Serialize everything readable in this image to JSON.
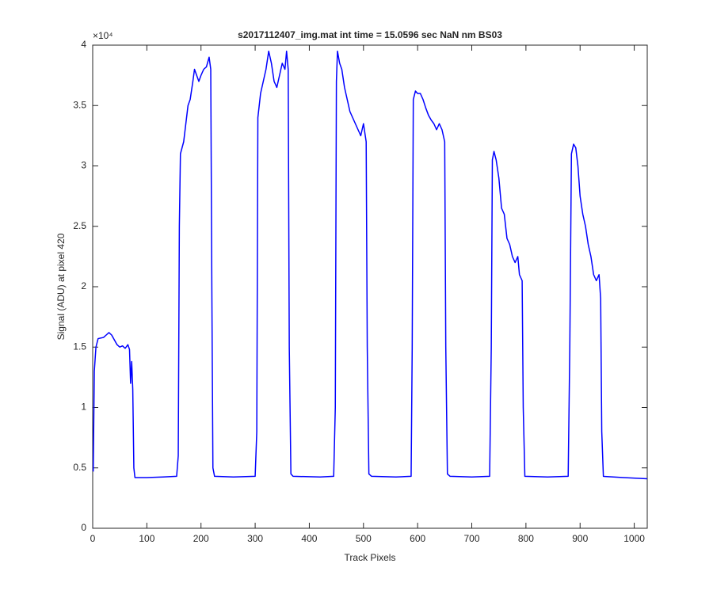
{
  "chart_data": {
    "type": "line",
    "title": "s2017112407_img.mat int time = 15.0596 sec  NaN nm BS03",
    "x_label": "Track Pixels",
    "y_label": "Signal (ADU) at pixel 420",
    "y_exponent_label": "×10⁴",
    "color": "#0000ff",
    "xlim": [
      0,
      1024
    ],
    "xticks": [
      0,
      100,
      200,
      300,
      400,
      500,
      600,
      700,
      800,
      900,
      1000
    ],
    "ylim": [
      0,
      4
    ],
    "yticks": [
      0,
      0.5,
      1,
      1.5,
      2,
      2.5,
      3,
      3.5,
      4
    ],
    "grid": false,
    "x": [
      1,
      3,
      6,
      10,
      20,
      25,
      30,
      35,
      40,
      45,
      50,
      55,
      60,
      65,
      68,
      70,
      72,
      74,
      76,
      78,
      100,
      130,
      155,
      158,
      160,
      162,
      168,
      172,
      176,
      180,
      185,
      188,
      192,
      196,
      200,
      205,
      210,
      215,
      218,
      220,
      222,
      225,
      260,
      300,
      303,
      305,
      310,
      315,
      320,
      325,
      330,
      335,
      340,
      345,
      350,
      355,
      358,
      361,
      363,
      366,
      370,
      420,
      445,
      448,
      450,
      452,
      456,
      460,
      465,
      470,
      475,
      480,
      485,
      490,
      495,
      500,
      505,
      507,
      510,
      515,
      560,
      588,
      590,
      592,
      596,
      600,
      605,
      610,
      615,
      620,
      625,
      630,
      635,
      640,
      645,
      650,
      652,
      655,
      660,
      700,
      733,
      736,
      738,
      741,
      745,
      750,
      755,
      760,
      765,
      770,
      775,
      780,
      785,
      788,
      793,
      795,
      798,
      840,
      878,
      881,
      884,
      888,
      892,
      896,
      900,
      905,
      910,
      915,
      920,
      925,
      930,
      935,
      938,
      940,
      943,
      980,
      1024
    ],
    "values": [
      0.47,
      1.3,
      1.5,
      1.57,
      1.58,
      1.6,
      1.62,
      1.6,
      1.56,
      1.52,
      1.5,
      1.51,
      1.49,
      1.52,
      1.48,
      1.2,
      1.38,
      1.15,
      0.5,
      0.42,
      0.42,
      0.425,
      0.43,
      0.6,
      2.5,
      3.1,
      3.2,
      3.35,
      3.5,
      3.55,
      3.7,
      3.8,
      3.75,
      3.7,
      3.75,
      3.8,
      3.82,
      3.9,
      3.8,
      2.0,
      0.5,
      0.43,
      0.425,
      0.43,
      0.8,
      3.4,
      3.6,
      3.7,
      3.8,
      3.95,
      3.85,
      3.7,
      3.65,
      3.75,
      3.85,
      3.8,
      3.95,
      3.8,
      1.5,
      0.45,
      0.43,
      0.425,
      0.43,
      1.0,
      3.7,
      3.95,
      3.85,
      3.8,
      3.65,
      3.55,
      3.45,
      3.4,
      3.35,
      3.3,
      3.25,
      3.35,
      3.2,
      1.5,
      0.45,
      0.43,
      0.425,
      0.43,
      1.5,
      3.55,
      3.62,
      3.6,
      3.6,
      3.55,
      3.48,
      3.42,
      3.38,
      3.35,
      3.3,
      3.35,
      3.3,
      3.2,
      1.5,
      0.45,
      0.43,
      0.425,
      0.43,
      1.5,
      3.05,
      3.12,
      3.05,
      2.9,
      2.65,
      2.6,
      2.4,
      2.35,
      2.25,
      2.2,
      2.25,
      2.1,
      2.05,
      1.0,
      0.43,
      0.425,
      0.43,
      1.5,
      3.1,
      3.18,
      3.15,
      3.0,
      2.75,
      2.6,
      2.5,
      2.35,
      2.25,
      2.1,
      2.05,
      2.1,
      1.9,
      0.8,
      0.43,
      0.42,
      0.41
    ]
  }
}
